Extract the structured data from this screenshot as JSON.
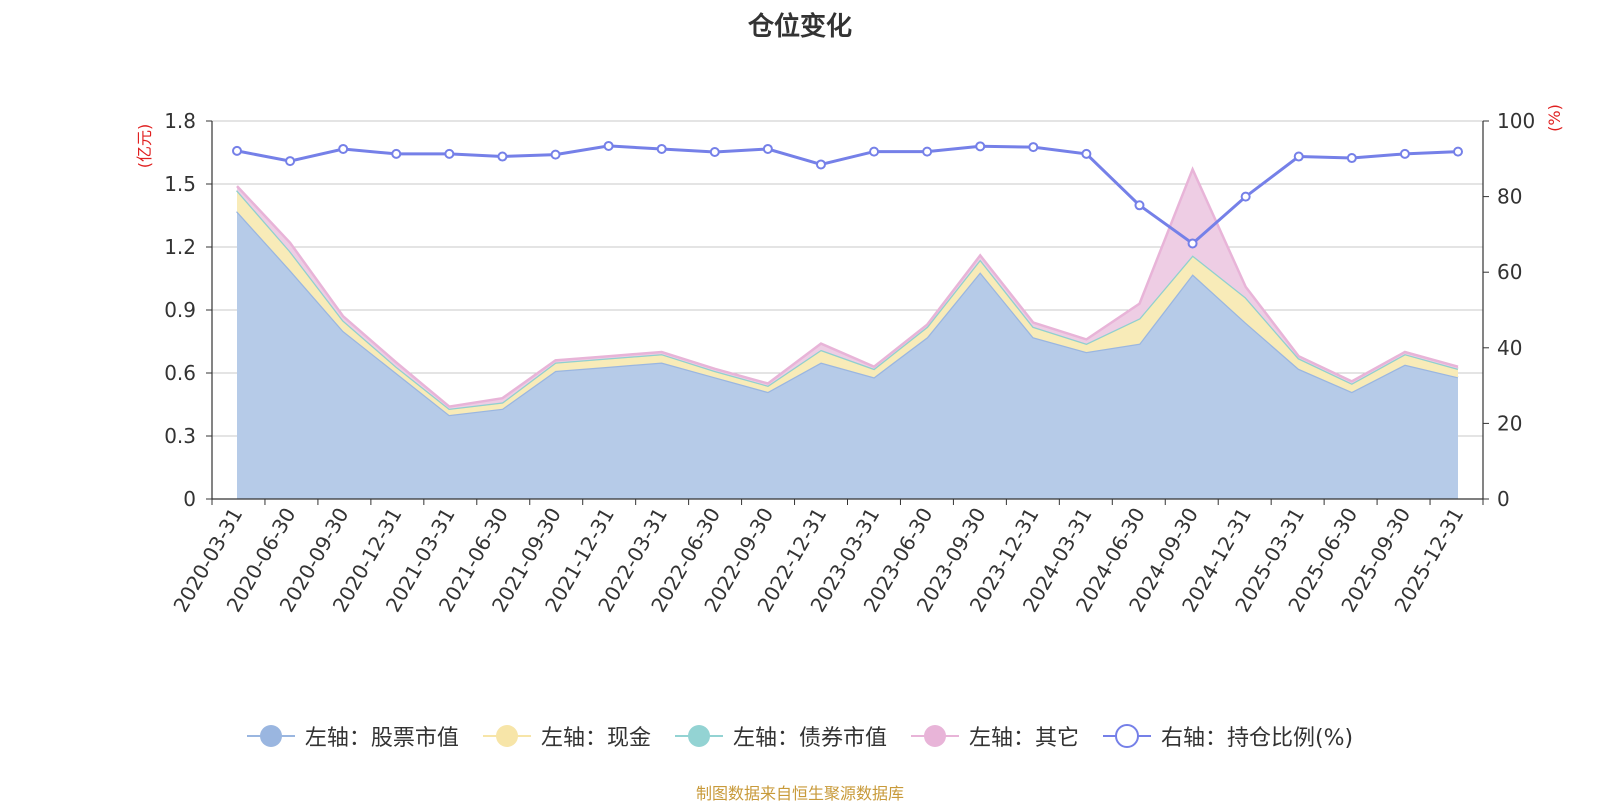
{
  "chart_data": {
    "type": "area",
    "title": "仓位变化",
    "categories": [
      "2020-03-31",
      "2020-06-30",
      "2020-09-30",
      "2020-12-31",
      "2021-03-31",
      "2021-06-30",
      "2021-09-30",
      "2021-12-31",
      "2022-03-31",
      "2022-06-30",
      "2022-09-30",
      "2022-12-31",
      "2023-03-31",
      "2023-06-30",
      "2023-09-30",
      "2023-12-31",
      "2024-03-31",
      "2024-06-30",
      "2024-09-30",
      "2024-12-31",
      "2025-03-31",
      "2025-06-30",
      "2025-09-30",
      "2025-12-31"
    ],
    "left_axis": {
      "unit": "(亿元)",
      "ylim": [
        0,
        1.8
      ],
      "ticks": [
        "0",
        "0.3",
        "0.6",
        "0.9",
        "1.2",
        "1.5",
        "1.8"
      ]
    },
    "right_axis": {
      "unit": "(%)",
      "ylim": [
        0,
        100
      ],
      "ticks": [
        "0",
        "20",
        "40",
        "60",
        "80",
        "100"
      ]
    },
    "series": [
      {
        "name": "左轴：股票市值",
        "axis": "left",
        "kind": "stacked-area",
        "color": "#9ab6e0",
        "fill": "#b6cbe8",
        "values": [
          1.37,
          1.09,
          0.8,
          0.6,
          0.4,
          0.43,
          0.61,
          0.63,
          0.65,
          0.58,
          0.51,
          0.65,
          0.58,
          0.77,
          1.08,
          0.77,
          0.7,
          0.74,
          1.07,
          0.84,
          0.62,
          0.51,
          0.64,
          0.58
        ]
      },
      {
        "name": "左轴：现金",
        "axis": "left",
        "kind": "stacked-area",
        "color": "#f5e3a0",
        "fill": "#f8ebb8",
        "values": [
          0.1,
          0.09,
          0.05,
          0.03,
          0.03,
          0.03,
          0.04,
          0.04,
          0.04,
          0.03,
          0.03,
          0.06,
          0.04,
          0.05,
          0.06,
          0.05,
          0.04,
          0.12,
          0.09,
          0.12,
          0.05,
          0.04,
          0.05,
          0.04
        ]
      },
      {
        "name": "左轴：债券市值",
        "axis": "left",
        "kind": "stacked-area",
        "color": "#8fd0d0",
        "fill": "#a8dcdc",
        "values": [
          0,
          0,
          0,
          0,
          0,
          0,
          0,
          0,
          0,
          0,
          0,
          0,
          0,
          0,
          0,
          0,
          0,
          0,
          0,
          0,
          0,
          0,
          0,
          0
        ]
      },
      {
        "name": "左轴：其它",
        "axis": "left",
        "kind": "stacked-area",
        "color": "#e8b4d8",
        "fill": "#eecde4",
        "values": [
          0.02,
          0.04,
          0.02,
          0.02,
          0.01,
          0.02,
          0.01,
          0.01,
          0.01,
          0.01,
          0.01,
          0.03,
          0.01,
          0.01,
          0.02,
          0.02,
          0.02,
          0.07,
          0.41,
          0.05,
          0.01,
          0.01,
          0.01,
          0.01
        ]
      },
      {
        "name": "右轴：持仓比例(%)",
        "axis": "right",
        "kind": "line",
        "color": "#7580e8",
        "values": [
          92.1,
          89.4,
          92.6,
          91.3,
          91.3,
          90.6,
          91.1,
          93.4,
          92.6,
          91.8,
          92.6,
          88.5,
          91.9,
          91.9,
          93.3,
          93.1,
          91.3,
          77.7,
          67.6,
          80.0,
          90.6,
          90.2,
          91.3,
          91.9
        ]
      }
    ]
  },
  "legend": {
    "items": [
      {
        "label": "左轴：股票市值",
        "marker": "filled-circle",
        "color": "#9ab6e0"
      },
      {
        "label": "左轴：现金",
        "marker": "filled-circle",
        "color": "#f7e5a8"
      },
      {
        "label": "左轴：债券市值",
        "marker": "filled-circle",
        "color": "#93d3d3"
      },
      {
        "label": "左轴：其它",
        "marker": "filled-circle",
        "color": "#e8b4d8"
      },
      {
        "label": "右轴：持仓比例(%)",
        "marker": "hollow-circle",
        "color": "#7580e8"
      }
    ]
  },
  "source": "制图数据来自恒生聚源数据库"
}
